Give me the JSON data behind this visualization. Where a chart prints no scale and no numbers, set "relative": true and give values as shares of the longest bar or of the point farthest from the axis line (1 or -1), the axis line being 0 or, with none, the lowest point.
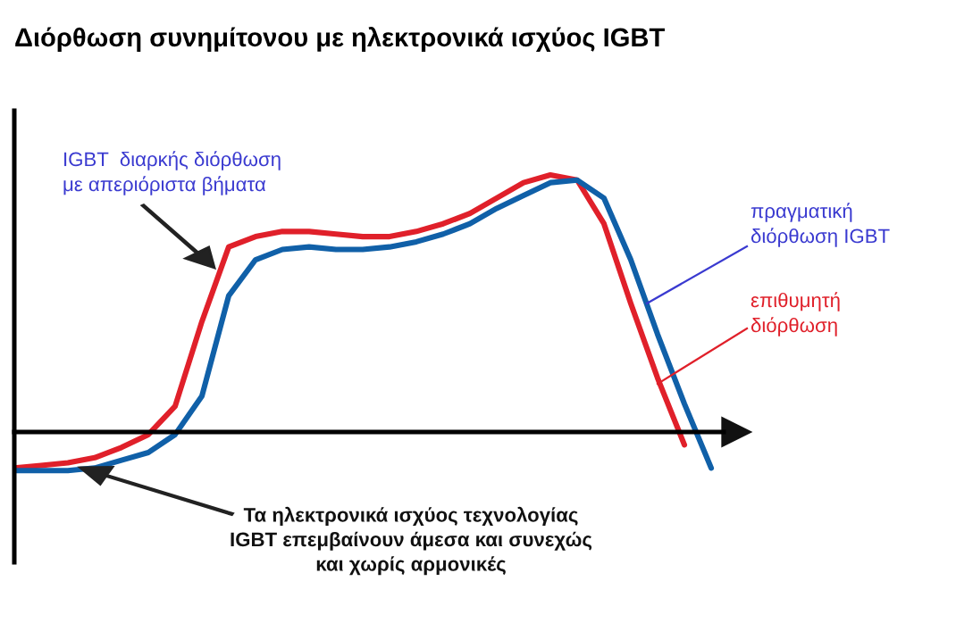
{
  "chart_data": {
    "type": "line",
    "relative": true,
    "title": "Διόρθωση συνημίτονου με ηλεκτρονικά ισχύος IGBT",
    "categories": [
      null,
      null,
      null,
      null,
      null,
      null,
      null,
      null,
      null,
      null,
      null,
      null,
      null,
      null,
      null,
      null,
      null,
      null,
      null,
      null,
      null,
      null,
      null,
      null,
      null,
      null,
      null
    ],
    "series": [
      {
        "name": "επιθυμητή διόρθωση",
        "color": "#e0202a",
        "values": [
          -0.14,
          -0.13,
          -0.12,
          -0.1,
          -0.06,
          -0.01,
          0.1,
          0.43,
          0.72,
          0.76,
          0.78,
          0.78,
          0.77,
          0.76,
          0.76,
          0.78,
          0.81,
          0.85,
          0.91,
          0.97,
          1.0,
          0.98,
          0.81,
          0.5,
          0.21,
          -0.05,
          null
        ]
      },
      {
        "name": "πραγματική διόρθωση IGBT",
        "color": "#1060a8",
        "values": [
          -0.15,
          -0.15,
          -0.15,
          -0.14,
          -0.11,
          -0.08,
          -0.01,
          0.14,
          0.53,
          0.67,
          0.71,
          0.72,
          0.71,
          0.71,
          0.72,
          0.74,
          0.77,
          0.81,
          0.87,
          0.92,
          0.97,
          0.98,
          0.91,
          0.67,
          0.38,
          0.11,
          -0.14
        ]
      }
    ],
    "annotations": [
      "IGBT  διαρκής διόρθωση\nμε απεριόριστα βήματα",
      "Τα ηλεκτρονικά ισχύος τεχνολογίας\nIGBT επεμβαίνουν άμεσα και συνεχώς\nκαι χωρίς αρμονικές"
    ],
    "legend": false
  }
}
